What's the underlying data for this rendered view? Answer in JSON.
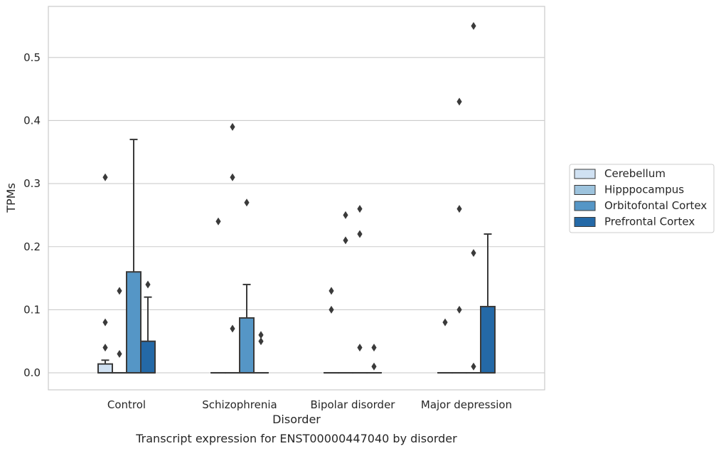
{
  "chart_data": {
    "type": "box",
    "xlabel": "Disorder",
    "ylabel": "TPMs",
    "caption": "Transcript expression for ENST00000447040 by disorder",
    "ylim": [
      -0.027,
      0.581
    ],
    "yticks": [
      "0.0",
      "0.1",
      "0.2",
      "0.3",
      "0.4",
      "0.5"
    ],
    "grid": "horizontal",
    "legend_placement": "right",
    "categories": [
      "Control",
      "Schizophrenia",
      "Bipolar disorder",
      "Major depression"
    ],
    "series": [
      {
        "name": "Cerebellum",
        "color": "#d0e1f2",
        "boxes": [
          {
            "q1": 0.0,
            "median": 0.0,
            "q3": 0.014,
            "whisker_low": 0.0,
            "whisker_high": 0.02,
            "outliers": [
              0.31,
              0.08,
              0.04
            ]
          },
          {
            "q1": 0.0,
            "median": 0.0,
            "q3": 0.0,
            "whisker_low": 0.0,
            "whisker_high": 0.0,
            "outliers": [
              0.24
            ]
          },
          {
            "q1": 0.0,
            "median": 0.0,
            "q3": 0.0,
            "whisker_low": 0.0,
            "whisker_high": 0.0,
            "outliers": [
              0.13,
              0.1
            ]
          },
          {
            "q1": 0.0,
            "median": 0.0,
            "q3": 0.0,
            "whisker_low": 0.0,
            "whisker_high": 0.0,
            "outliers": [
              0.08
            ]
          }
        ]
      },
      {
        "name": "Hipppocampus",
        "color": "#9dc3dd",
        "boxes": [
          {
            "q1": 0.0,
            "median": 0.0,
            "q3": 0.0,
            "whisker_low": 0.0,
            "whisker_high": 0.0,
            "outliers": [
              0.13,
              0.03
            ]
          },
          {
            "q1": 0.0,
            "median": 0.0,
            "q3": 0.0,
            "whisker_low": 0.0,
            "whisker_high": 0.0,
            "outliers": [
              0.39,
              0.31,
              0.07
            ]
          },
          {
            "q1": 0.0,
            "median": 0.0,
            "q3": 0.0,
            "whisker_low": 0.0,
            "whisker_high": 0.0,
            "outliers": [
              0.25,
              0.21
            ]
          },
          {
            "q1": 0.0,
            "median": 0.0,
            "q3": 0.0,
            "whisker_low": 0.0,
            "whisker_high": 0.0,
            "outliers": [
              0.43,
              0.26,
              0.1
            ]
          }
        ]
      },
      {
        "name": "Orbitofontal Cortex",
        "color": "#5596c6",
        "boxes": [
          {
            "q1": 0.0,
            "median": 0.0,
            "q3": 0.16,
            "whisker_low": 0.0,
            "whisker_high": 0.37,
            "outliers": []
          },
          {
            "q1": 0.0,
            "median": 0.0,
            "q3": 0.087,
            "whisker_low": 0.0,
            "whisker_high": 0.14,
            "outliers": [
              0.27
            ]
          },
          {
            "q1": 0.0,
            "median": 0.0,
            "q3": 0.0,
            "whisker_low": 0.0,
            "whisker_high": 0.0,
            "outliers": [
              0.26,
              0.22,
              0.04
            ]
          },
          {
            "q1": 0.0,
            "median": 0.0,
            "q3": 0.0,
            "whisker_low": 0.0,
            "whisker_high": 0.0,
            "outliers": [
              0.55,
              0.19,
              0.01
            ]
          }
        ]
      },
      {
        "name": "Prefrontal Cortex",
        "color": "#2469a7",
        "boxes": [
          {
            "q1": 0.0,
            "median": 0.0,
            "q3": 0.05,
            "whisker_low": 0.0,
            "whisker_high": 0.12,
            "outliers": [
              0.14
            ]
          },
          {
            "q1": 0.0,
            "median": 0.0,
            "q3": 0.0,
            "whisker_low": 0.0,
            "whisker_high": 0.0,
            "outliers": [
              0.06,
              0.05
            ]
          },
          {
            "q1": 0.0,
            "median": 0.0,
            "q3": 0.0,
            "whisker_low": 0.0,
            "whisker_high": 0.0,
            "outliers": [
              0.04,
              0.01
            ]
          },
          {
            "q1": 0.0,
            "median": 0.0,
            "q3": 0.105,
            "whisker_low": 0.0,
            "whisker_high": 0.22,
            "outliers": []
          }
        ]
      }
    ]
  }
}
